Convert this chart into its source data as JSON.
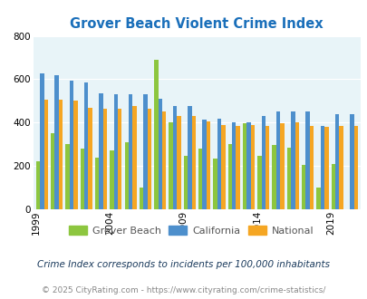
{
  "title": "Grover Beach Violent Crime Index",
  "title_color": "#1a6fba",
  "years": [
    1999,
    2000,
    2001,
    2002,
    2003,
    2004,
    2005,
    2006,
    2007,
    2008,
    2009,
    2010,
    2011,
    2012,
    2013,
    2014,
    2015,
    2016,
    2017,
    2018,
    2019,
    2020
  ],
  "grover_beach": [
    220,
    350,
    300,
    280,
    240,
    270,
    310,
    100,
    690,
    400,
    245,
    280,
    235,
    300,
    395,
    245,
    295,
    285,
    205,
    100,
    210,
    0
  ],
  "california": [
    625,
    620,
    595,
    585,
    535,
    530,
    530,
    530,
    510,
    475,
    475,
    415,
    420,
    400,
    400,
    430,
    450,
    450,
    450,
    385,
    440,
    440
  ],
  "national": [
    505,
    505,
    500,
    470,
    465,
    465,
    475,
    465,
    450,
    430,
    430,
    405,
    390,
    385,
    390,
    385,
    395,
    400,
    385,
    380,
    385,
    385
  ],
  "grover_color": "#8dc63f",
  "california_color": "#4d8fcc",
  "national_color": "#f5a623",
  "bg_color": "#e8f4f8",
  "xlabel_tick_years": [
    1999,
    2004,
    2009,
    2014,
    2019
  ],
  "footnote1": "Crime Index corresponds to incidents per 100,000 inhabitants",
  "footnote2": "© 2025 CityRating.com - https://www.cityrating.com/crime-statistics/",
  "footnote1_color": "#1a3a5c",
  "footnote2_color": "#888888",
  "legend_text_color": "#555555",
  "ylim": [
    0,
    800
  ],
  "yticks": [
    0,
    200,
    400,
    600,
    800
  ]
}
